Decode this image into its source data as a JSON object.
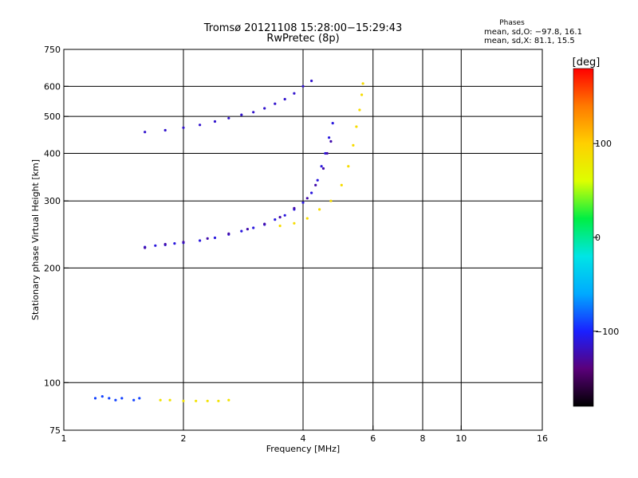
{
  "header": {
    "title": "Tromsø 20121108 15:28:00−15:29:43",
    "subtitle": "RwPretec (8p)"
  },
  "stats": {
    "heading": "Phases",
    "line_o": "mean, sd,O: −97.8, 16.1",
    "line_x": "mean, sd,X:  81.1, 15.5"
  },
  "colorbar": {
    "label": "[deg]",
    "ticks": [
      {
        "value": 100,
        "label": "100"
      },
      {
        "value": 0,
        "label": "0"
      },
      {
        "value": -100,
        "label": "−100"
      }
    ],
    "range": [
      -180,
      180
    ],
    "colors": [
      "#000000",
      "#5a007a",
      "#1a20ff",
      "#00aaff",
      "#00e5e5",
      "#00ee44",
      "#ddff00",
      "#ffd000",
      "#ff7a00",
      "#ff0000"
    ]
  },
  "chart_data": {
    "type": "scatter",
    "xlabel": "Frequency [MHz]",
    "ylabel": "Stationary phase Virtual Height [km]",
    "x_scale": "log",
    "y_scale": "log",
    "xlim": [
      1,
      16
    ],
    "ylim": [
      75,
      750
    ],
    "xticks": [
      {
        "value": 1,
        "label": "1"
      },
      {
        "value": 2,
        "label": "2"
      },
      {
        "value": 4,
        "label": "4"
      },
      {
        "value": 6,
        "label": "6"
      },
      {
        "value": 8,
        "label": "8"
      },
      {
        "value": 10,
        "label": "10"
      },
      {
        "value": 16,
        "label": "16"
      }
    ],
    "yticks": [
      {
        "value": 75,
        "label": "75"
      },
      {
        "value": 100,
        "label": "100"
      },
      {
        "value": 200,
        "label": "200"
      },
      {
        "value": 300,
        "label": "300"
      },
      {
        "value": 400,
        "label": "400"
      },
      {
        "value": 500,
        "label": "500"
      },
      {
        "value": 600,
        "label": "600"
      },
      {
        "value": 750,
        "label": "750"
      }
    ],
    "grid_x": [
      2,
      4,
      6,
      8,
      10
    ],
    "grid_y": [
      100,
      200,
      300,
      400,
      500,
      600
    ],
    "series": [
      {
        "values": [
          [
            1.6,
            227
          ],
          [
            1.7,
            229
          ],
          [
            1.8,
            230
          ],
          [
            1.9,
            232
          ],
          [
            2.0,
            233
          ],
          [
            2.2,
            236
          ],
          [
            2.4,
            240
          ],
          [
            2.6,
            245
          ],
          [
            2.8,
            250
          ],
          [
            3.0,
            255
          ],
          [
            3.2,
            260
          ],
          [
            3.4,
            268
          ],
          [
            3.6,
            275
          ],
          [
            3.8,
            285
          ],
          [
            4.0,
            297
          ],
          [
            4.2,
            315
          ],
          [
            4.35,
            340
          ],
          [
            4.45,
            370
          ],
          [
            4.55,
            400
          ],
          [
            4.65,
            440
          ],
          [
            4.75,
            480
          ]
        ],
        "phase": -110
      },
      {
        "values": [
          [
            1.6,
            226
          ],
          [
            1.8,
            231
          ],
          [
            2.0,
            234
          ],
          [
            2.3,
            239
          ],
          [
            2.6,
            246
          ],
          [
            2.9,
            253
          ],
          [
            3.2,
            261
          ],
          [
            3.5,
            272
          ],
          [
            3.8,
            287
          ],
          [
            4.1,
            305
          ],
          [
            4.3,
            330
          ],
          [
            4.5,
            365
          ],
          [
            4.6,
            400
          ],
          [
            4.7,
            430
          ]
        ],
        "phase": -125
      },
      {
        "values": [
          [
            1.6,
            455
          ],
          [
            1.8,
            460
          ],
          [
            2.0,
            467
          ],
          [
            2.2,
            475
          ],
          [
            2.4,
            485
          ],
          [
            2.6,
            495
          ],
          [
            2.8,
            505
          ],
          [
            3.0,
            513
          ],
          [
            3.2,
            525
          ],
          [
            3.4,
            540
          ],
          [
            3.6,
            555
          ],
          [
            3.8,
            575
          ],
          [
            4.0,
            600
          ],
          [
            4.2,
            620
          ]
        ],
        "phase": -115
      },
      {
        "values": [
          [
            3.5,
            258
          ],
          [
            3.8,
            262
          ],
          [
            4.1,
            270
          ],
          [
            4.4,
            285
          ],
          [
            4.7,
            300
          ],
          [
            5.0,
            330
          ],
          [
            5.2,
            370
          ],
          [
            5.35,
            420
          ],
          [
            5.45,
            470
          ],
          [
            5.55,
            520
          ],
          [
            5.62,
            570
          ],
          [
            5.66,
            610
          ]
        ],
        "phase": 90
      },
      {
        "values": [
          [
            1.75,
            90
          ],
          [
            1.85,
            90
          ],
          [
            2.0,
            89.5
          ],
          [
            2.15,
            89.5
          ],
          [
            2.3,
            89.5
          ],
          [
            2.45,
            89.5
          ],
          [
            2.6,
            90
          ]
        ],
        "phase": 85
      },
      {
        "values": [
          [
            1.2,
            91
          ],
          [
            1.25,
            92
          ],
          [
            1.3,
            91
          ],
          [
            1.35,
            90
          ],
          [
            1.4,
            91
          ],
          [
            1.5,
            90
          ],
          [
            1.55,
            91
          ]
        ],
        "phase": -90
      }
    ]
  }
}
